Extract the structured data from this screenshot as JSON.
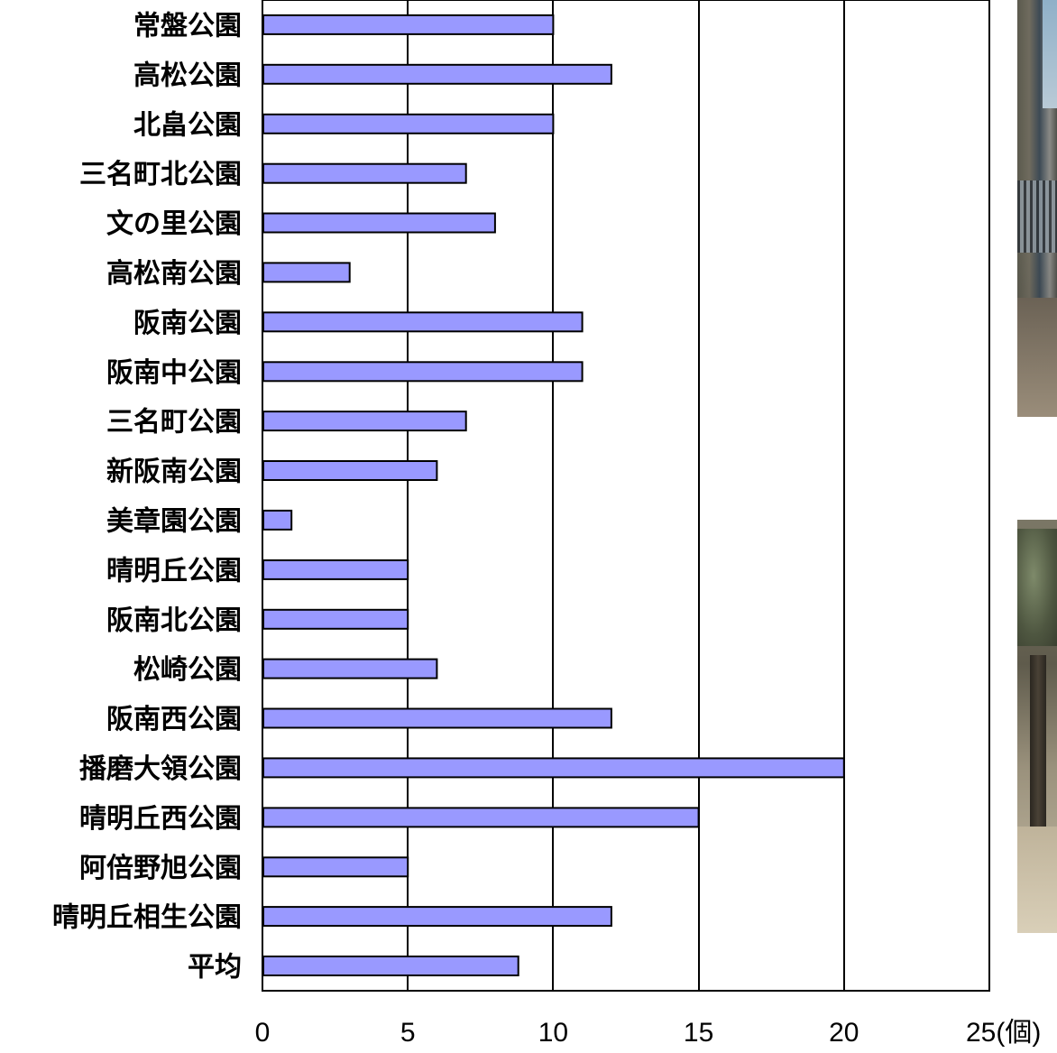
{
  "chart_data": {
    "type": "bar",
    "orientation": "horizontal",
    "categories": [
      "常盤公園",
      "高松公園",
      "北畠公園",
      "三名町北公園",
      "文の里公園",
      "高松南公園",
      "阪南公園",
      "阪南中公園",
      "三名町公園",
      "新阪南公園",
      "美章園公園",
      "晴明丘公園",
      "阪南北公園",
      "松崎公園",
      "阪南西公園",
      "播磨大領公園",
      "晴明丘西公園",
      "阿倍野旭公園",
      "晴明丘相生公園",
      "平均"
    ],
    "values": [
      10,
      12,
      10,
      7,
      8,
      3,
      11,
      11,
      7,
      6,
      1,
      5,
      5,
      6,
      12,
      20,
      15,
      5,
      12,
      8.8
    ],
    "xlim": [
      0,
      25
    ],
    "xticks": [
      0,
      5,
      10,
      15,
      20,
      25
    ],
    "x_tick_labels": [
      "0",
      "5",
      "10",
      "15",
      "20",
      "25(個)"
    ],
    "grid": "vertical",
    "colors": {
      "bar_fill": "#9999ff",
      "bar_stroke": "#000000",
      "grid": "#000000"
    }
  },
  "photos": [
    {
      "name": "park-photo-top"
    },
    {
      "name": "park-photo-bottom"
    }
  ]
}
